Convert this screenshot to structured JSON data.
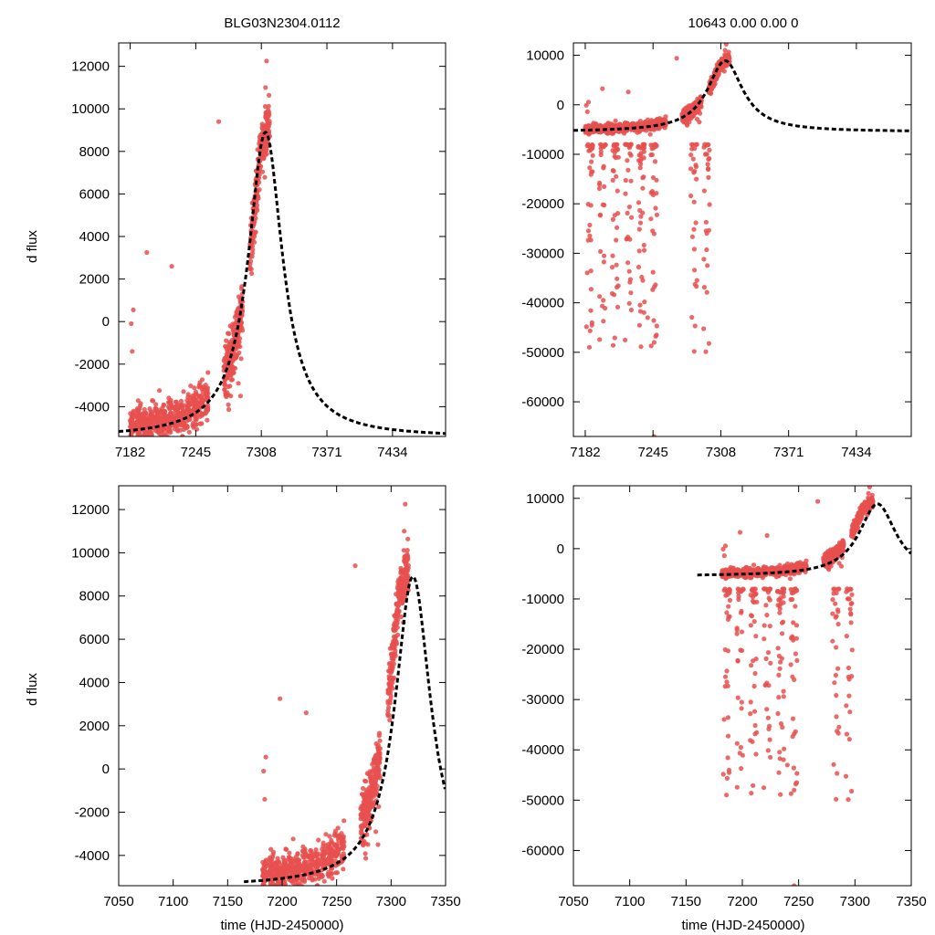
{
  "titles": {
    "left": "BLG03N2304.0112",
    "right": "10643  0.00  0.00  0"
  },
  "labels": {
    "ylabel_top": "d flux",
    "ylabel_bottom": "d flux",
    "xlabel_left": "time (HJD-2450000)",
    "xlabel_right": "time (HJD-2450000)"
  },
  "colors": {
    "points": "#e8504f",
    "model": "#000000"
  },
  "chart_data": [
    {
      "id": "top-left",
      "type": "scatter",
      "xlim": [
        7171,
        7485
      ],
      "ylim": [
        -5400,
        13100
      ],
      "xticks": [
        7182,
        7245,
        7308,
        7371,
        7434
      ],
      "yticks": [
        -4000,
        -2000,
        0,
        2000,
        4000,
        6000,
        8000,
        10000,
        12000
      ],
      "model": {
        "t0": 7312,
        "peak": 8900,
        "base": -5450,
        "width": 20
      },
      "series": [
        {
          "name": "observations",
          "mode": "flux"
        }
      ]
    },
    {
      "id": "top-right",
      "type": "scatter",
      "xlim": [
        7171,
        7485
      ],
      "ylim": [
        -67000,
        12500
      ],
      "xticks": [
        7182,
        7245,
        7308,
        7371,
        7434
      ],
      "yticks": [
        -60000,
        -50000,
        -40000,
        -30000,
        -20000,
        -10000,
        0,
        10000
      ],
      "model": {
        "t0": 7312,
        "peak": 8900,
        "base": -5450,
        "width": 20
      },
      "series": [
        {
          "name": "observations",
          "mode": "wide"
        }
      ]
    },
    {
      "id": "bottom-left",
      "type": "scatter",
      "xlim": [
        7050,
        7350
      ],
      "ylim": [
        -5400,
        13100
      ],
      "xticks": [
        7050,
        7100,
        7150,
        7200,
        7250,
        7300,
        7350
      ],
      "yticks": [
        -4000,
        -2000,
        0,
        2000,
        4000,
        6000,
        8000,
        10000,
        12000
      ],
      "model": {
        "t0": 7320,
        "peak": 8900,
        "base": -5450,
        "width": 20,
        "xstart": 7165
      },
      "series": [
        {
          "name": "observations",
          "mode": "flux"
        }
      ]
    },
    {
      "id": "bottom-right",
      "type": "scatter",
      "xlim": [
        7050,
        7350
      ],
      "ylim": [
        -67000,
        12500
      ],
      "xticks": [
        7050,
        7100,
        7150,
        7200,
        7250,
        7300,
        7350
      ],
      "yticks": [
        -60000,
        -50000,
        -40000,
        -30000,
        -20000,
        -10000,
        0,
        10000
      ],
      "model": {
        "t0": 7320,
        "peak": 8900,
        "base": -5450,
        "width": 20,
        "xstart": 7160
      },
      "series": [
        {
          "name": "observations",
          "mode": "wide"
        }
      ]
    }
  ]
}
